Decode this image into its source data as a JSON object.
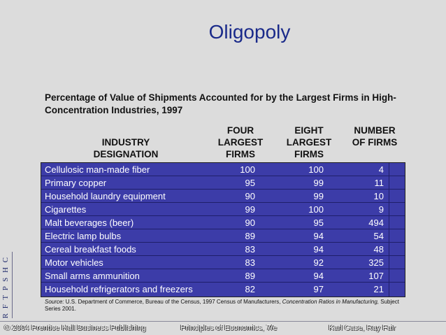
{
  "slide": {
    "title": "Oligopoly",
    "side_letters": "R F T P S H C",
    "subtitle": "Percentage of Value of Shipments Accounted for by the Largest Firms in High-Concentration Industries, 1997"
  },
  "table": {
    "headers": {
      "industry": "INDUSTRY DESIGNATION",
      "four": "FOUR LARGEST FIRMS",
      "eight": "EIGHT LARGEST FIRMS",
      "number": "NUMBER OF FIRMS"
    },
    "rows": [
      {
        "industry": "Cellulosic man-made fiber",
        "four": "100",
        "eight": "100",
        "number": "4"
      },
      {
        "industry": "Primary copper",
        "four": "95",
        "eight": "99",
        "number": "11"
      },
      {
        "industry": "Household laundry equipment",
        "four": "90",
        "eight": "99",
        "number": "10"
      },
      {
        "industry": "Cigarettes",
        "four": "99",
        "eight": "100",
        "number": "9"
      },
      {
        "industry": "Malt beverages (beer)",
        "four": "90",
        "eight": "95",
        "number": "494"
      },
      {
        "industry": "Electric lamp bulbs",
        "four": "89",
        "eight": "94",
        "number": "54"
      },
      {
        "industry": "Cereal breakfast foods",
        "four": "83",
        "eight": "94",
        "number": "48"
      },
      {
        "industry": "Motor vehicles",
        "four": "83",
        "eight": "92",
        "number": "325"
      },
      {
        "industry": "Small arms ammunition",
        "four": "89",
        "eight": "94",
        "number": "107"
      },
      {
        "industry": "Household refrigerators and freezers",
        "four": "82",
        "eight": "97",
        "number": "21"
      }
    ]
  },
  "source": {
    "label": "Source:",
    "text_a": " U.S. Department of Commerce, Bureau of the Census, 1997 Census of Manufacturers, ",
    "text_italic": "Concentration Ratios in Manufacturing,",
    "text_b": " Subject Series 2001."
  },
  "footer": {
    "left": "© 2004 Prentice Hall Business Publishing",
    "center": "Principles of Economics, 7/e",
    "right": "Karl Case, Ray Fair"
  },
  "colors": {
    "table_bg": "#3c3ca8",
    "title": "#1a2a8a"
  }
}
